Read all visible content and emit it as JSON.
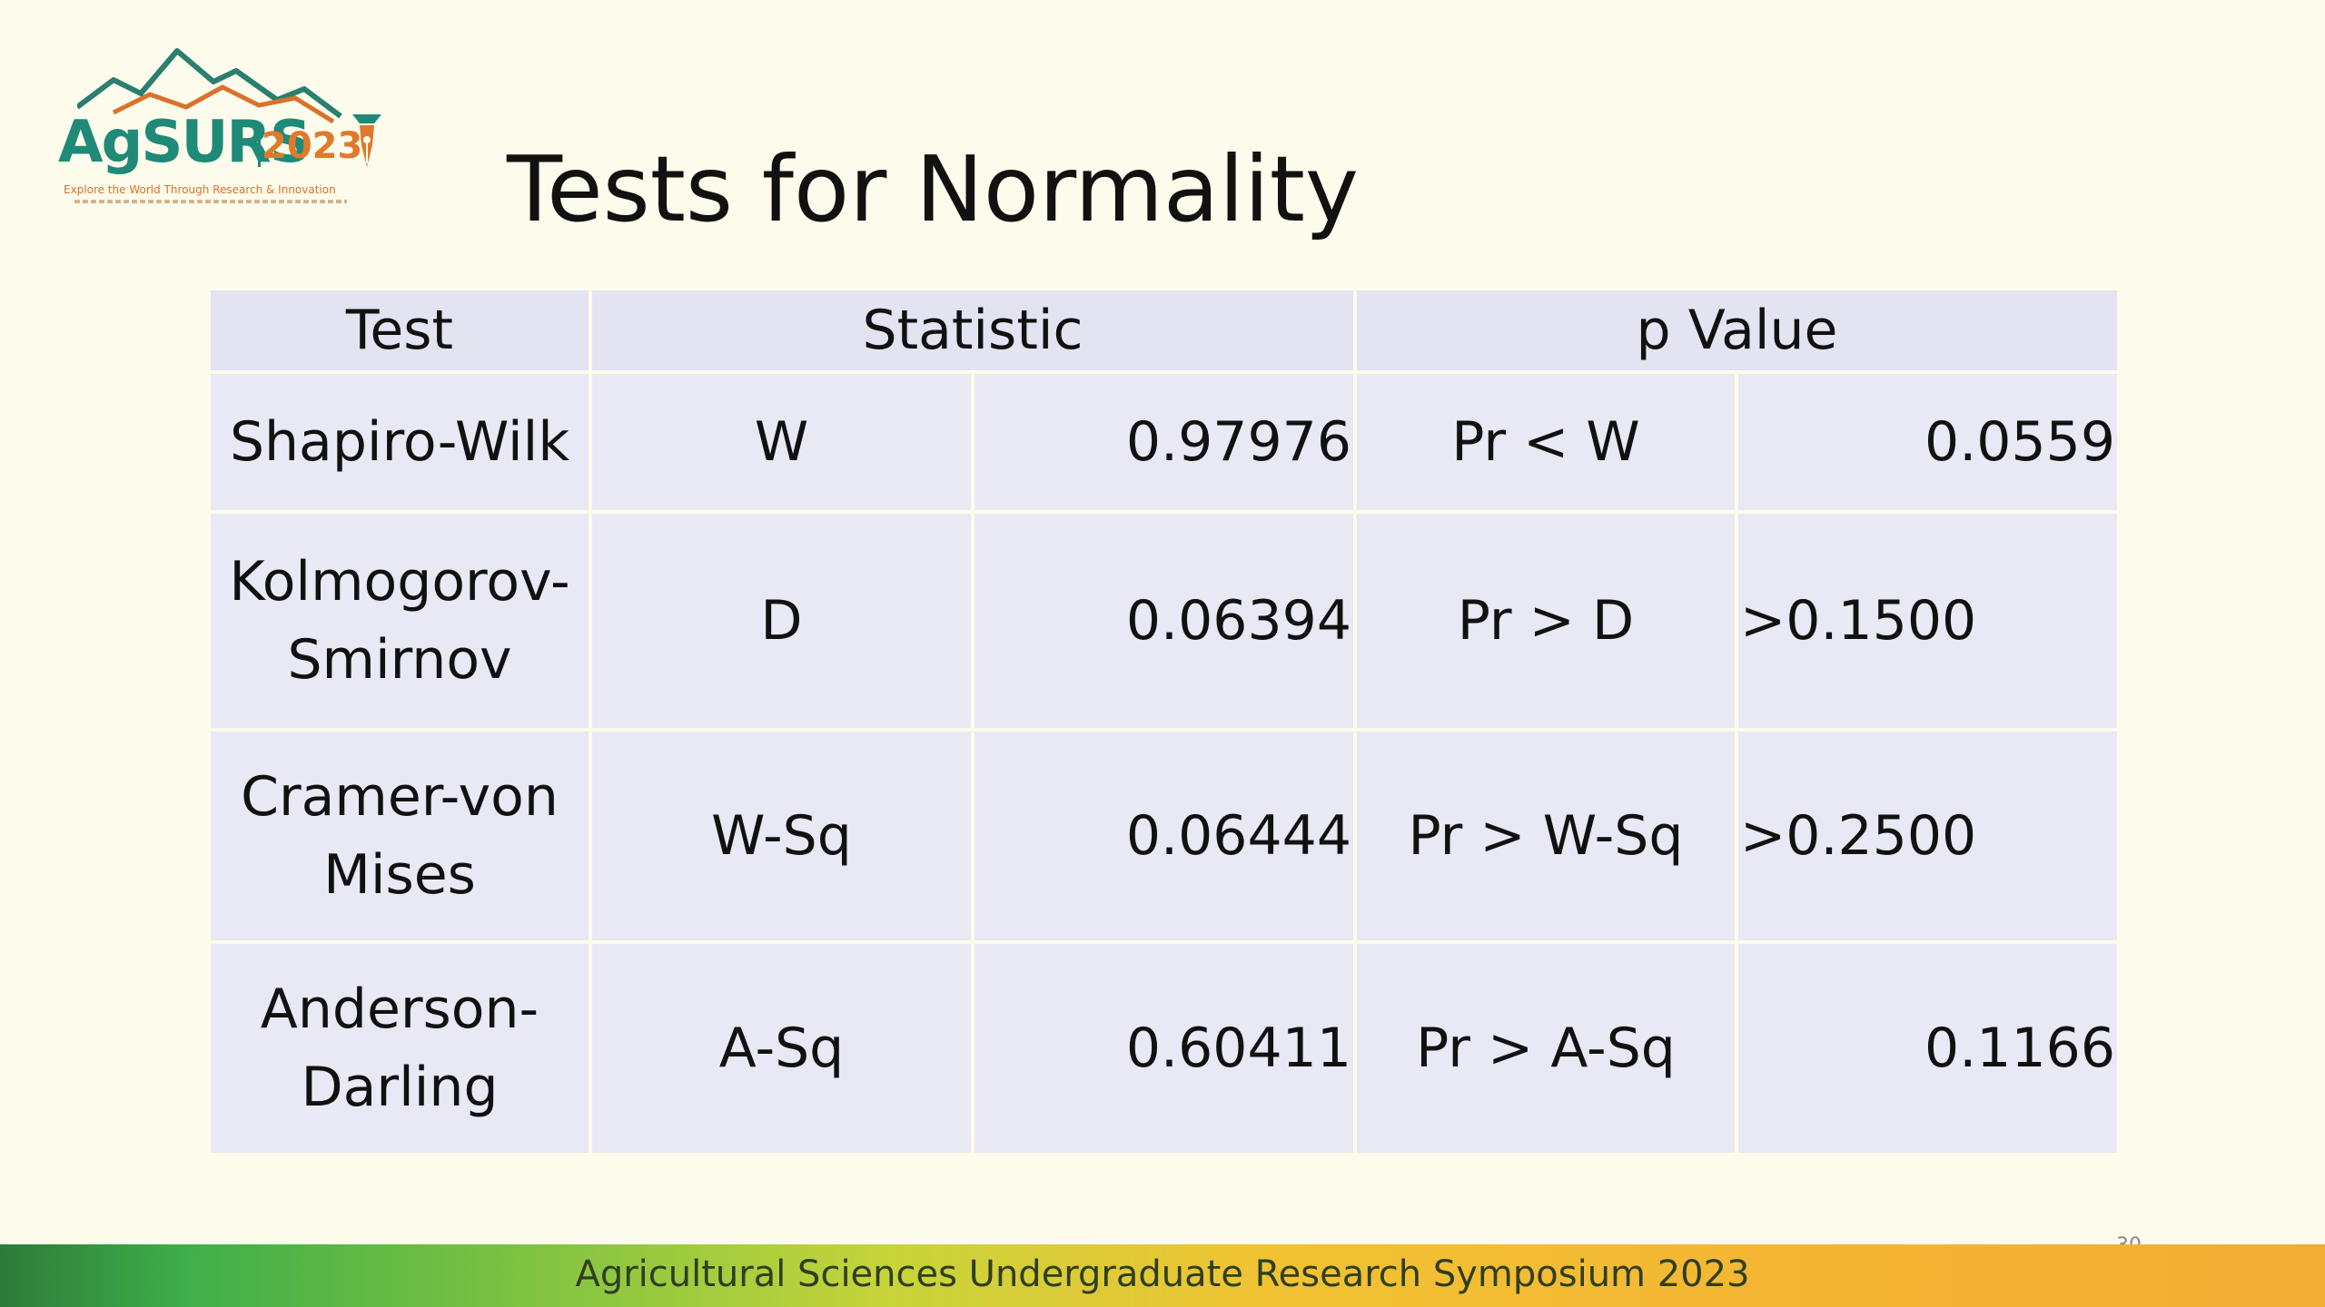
{
  "logo": {
    "wordmark": "AgSURS",
    "year": "2023",
    "tagline": "Explore the World Through Research & Innovation",
    "colors": {
      "primary": "#1f8a78",
      "accent": "#e07a2a"
    }
  },
  "slide": {
    "title": "Tests for Normality",
    "page_number": "30"
  },
  "table": {
    "headers": {
      "test": "Test",
      "statistic": "Statistic",
      "p_value": "p Value"
    },
    "rows": [
      {
        "test": "Shapiro-Wilk",
        "stat_symbol": "W",
        "stat_value": "0.97976",
        "p_label": "Pr < W",
        "p_value": "0.0559"
      },
      {
        "test_line1": "Kolmogorov-",
        "test_line2": "Smirnov",
        "stat_symbol": "D",
        "stat_value": "0.06394",
        "p_label": "Pr > D",
        "p_value": ">0.1500"
      },
      {
        "test_line1": "Cramer-von",
        "test_line2": "Mises",
        "stat_symbol": "W-Sq",
        "stat_value": "0.06444",
        "p_label": "Pr > W-Sq",
        "p_value": ">0.2500"
      },
      {
        "test_line1": "Anderson-",
        "test_line2": "Darling",
        "stat_symbol": "A-Sq",
        "stat_value": "0.60411",
        "p_label": "Pr > A-Sq",
        "p_value": "0.1166"
      }
    ]
  },
  "footer": {
    "text": "Agricultural Sciences Undergraduate Research Symposium 2023"
  }
}
